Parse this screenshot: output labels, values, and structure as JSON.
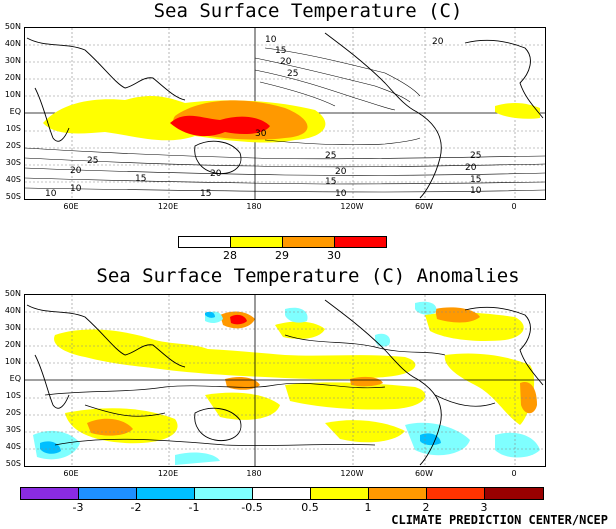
{
  "top_map": {
    "title": "Sea Surface Temperature (C)",
    "lat_labels": [
      "50N",
      "40N",
      "30N",
      "20N",
      "10N",
      "EQ",
      "10S",
      "20S",
      "30S",
      "40S",
      "50S"
    ],
    "lon_labels": [
      "60E",
      "120E",
      "180",
      "120W",
      "60W",
      "0"
    ],
    "contour_labels": [
      "10",
      "15",
      "20",
      "25",
      "25",
      "20",
      "15",
      "10",
      "30",
      "25",
      "20",
      "15",
      "10",
      "20",
      "25",
      "20",
      "15",
      "10",
      "20",
      "15",
      "10"
    ],
    "colorbar": {
      "labels": [
        "28",
        "29",
        "30"
      ],
      "colors": [
        "#ffffff",
        "#ffff00",
        "#ff9900",
        "#ff0000"
      ]
    }
  },
  "bottom_map": {
    "title": "Sea Surface Temperature (C) Anomalies",
    "lat_labels": [
      "50N",
      "40N",
      "30N",
      "20N",
      "10N",
      "EQ",
      "10S",
      "20S",
      "30S",
      "40S",
      "50S"
    ],
    "lon_labels": [
      "60E",
      "120E",
      "180",
      "120W",
      "60W",
      "0"
    ],
    "colorbar": {
      "labels": [
        "-3",
        "-2",
        "-1",
        "-0.5",
        "0.5",
        "1",
        "2",
        "3"
      ],
      "colors": [
        "#8a2be2",
        "#1e90ff",
        "#00bfff",
        "#7fffff",
        "#ffffff",
        "#ffff00",
        "#ff9900",
        "#ff3300",
        "#990000"
      ]
    }
  },
  "credit": "CLIMATE PREDICTION CENTER/NCEP"
}
